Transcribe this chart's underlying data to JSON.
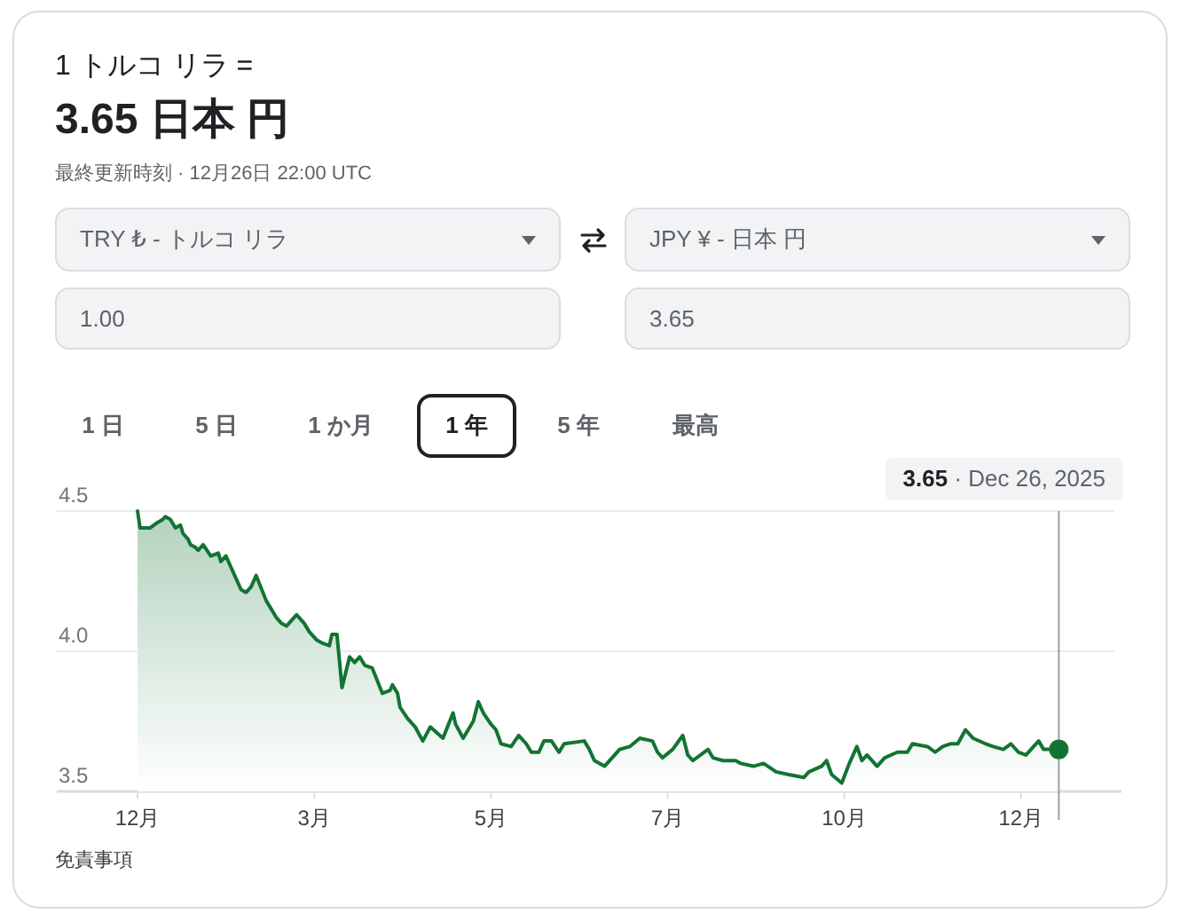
{
  "chart_data": {
    "type": "area",
    "title": "1 トルコ リラ =",
    "subtitle": "3.65 日本 円",
    "annotations": [
      "最終更新時刻 · 12月26日 22:00 UTC",
      "TRY ₺ - トルコ リラ",
      "JPY ¥ - 日本 円",
      "1.00",
      "3.65",
      "1 日",
      "5 日",
      "1 か月",
      "1 年",
      "5 年",
      "最高",
      "**3.65** · Dec 26, 2025",
      "免責事項"
    ],
    "x": [
      "2024-12-26",
      "2024-12-27",
      "2024-12-29",
      "2024-12-31",
      "2025-01-03",
      "2025-01-05",
      "2025-01-06",
      "2025-01-08",
      "2025-01-10",
      "2025-01-12",
      "2025-01-13",
      "2025-01-15",
      "2025-01-16",
      "2025-01-18",
      "2025-01-19",
      "2025-01-21",
      "2025-01-24",
      "2025-01-27",
      "2025-01-28",
      "2025-01-30",
      "2025-02-01",
      "2025-02-03",
      "2025-02-05",
      "2025-02-07",
      "2025-02-09",
      "2025-02-11",
      "2025-02-15",
      "2025-02-19",
      "2025-02-21",
      "2025-02-23",
      "2025-02-27",
      "2025-03-02",
      "2025-03-04",
      "2025-03-07",
      "2025-03-09",
      "2025-03-12",
      "2025-03-13",
      "2025-03-15",
      "2025-03-17",
      "2025-03-20",
      "2025-03-22",
      "2025-03-24",
      "2025-03-26",
      "2025-03-29",
      "2025-04-02",
      "2025-04-05",
      "2025-04-06",
      "2025-04-08",
      "2025-04-09",
      "2025-04-12",
      "2025-04-15",
      "2025-04-18",
      "2025-04-21",
      "2025-04-26",
      "2025-04-30",
      "2025-05-01",
      "2025-05-04",
      "2025-05-08",
      "2025-05-10",
      "2025-05-12",
      "2025-05-15",
      "2025-05-17",
      "2025-05-19",
      "2025-05-23",
      "2025-05-26",
      "2025-05-29",
      "2025-05-31",
      "2025-06-03",
      "2025-06-05",
      "2025-06-08",
      "2025-06-11",
      "2025-06-13",
      "2025-06-21",
      "2025-06-23",
      "2025-06-25",
      "2025-06-29",
      "2025-07-02",
      "2025-07-05",
      "2025-07-09",
      "2025-07-13",
      "2025-07-18",
      "2025-07-20",
      "2025-07-22",
      "2025-07-26",
      "2025-07-30",
      "2025-08-01",
      "2025-08-03",
      "2025-08-09",
      "2025-08-11",
      "2025-08-15",
      "2025-08-20",
      "2025-08-22",
      "2025-08-27",
      "2025-08-31",
      "2025-09-05",
      "2025-09-10",
      "2025-09-16",
      "2025-09-18",
      "2025-09-23",
      "2025-09-25",
      "2025-09-27",
      "2025-10-01",
      "2025-10-04",
      "2025-10-07",
      "2025-10-09",
      "2025-10-11",
      "2025-10-15",
      "2025-10-18",
      "2025-10-23",
      "2025-10-27",
      "2025-10-29",
      "2025-11-04",
      "2025-11-07",
      "2025-11-10",
      "2025-11-13",
      "2025-11-16",
      "2025-11-19",
      "2025-11-22",
      "2025-11-27",
      "2025-11-30",
      "2025-12-04",
      "2025-12-07",
      "2025-12-10",
      "2025-12-13",
      "2025-12-18",
      "2025-12-20",
      "2025-12-24",
      "2025-12-26"
    ],
    "series": [
      {
        "color": "#137333",
        "values": [
          4.5,
          4.44,
          4.44,
          4.44,
          4.46,
          4.47,
          4.48,
          4.47,
          4.44,
          4.45,
          4.42,
          4.4,
          4.38,
          4.37,
          4.36,
          4.38,
          4.34,
          4.35,
          4.32,
          4.34,
          4.3,
          4.26,
          4.22,
          4.21,
          4.23,
          4.27,
          4.18,
          4.12,
          4.1,
          4.09,
          4.13,
          4.1,
          4.07,
          4.04,
          4.03,
          4.02,
          4.06,
          4.06,
          3.87,
          3.98,
          3.96,
          3.98,
          3.95,
          3.94,
          3.85,
          3.86,
          3.88,
          3.85,
          3.8,
          3.76,
          3.73,
          3.68,
          3.73,
          3.69,
          3.78,
          3.74,
          3.69,
          3.75,
          3.82,
          3.78,
          3.74,
          3.72,
          3.67,
          3.66,
          3.7,
          3.67,
          3.64,
          3.64,
          3.68,
          3.68,
          3.64,
          3.67,
          3.68,
          3.65,
          3.61,
          3.59,
          3.62,
          3.65,
          3.66,
          3.69,
          3.68,
          3.64,
          3.62,
          3.65,
          3.7,
          3.63,
          3.61,
          3.65,
          3.62,
          3.61,
          3.61,
          3.6,
          3.59,
          3.6,
          3.57,
          3.56,
          3.55,
          3.57,
          3.59,
          3.61,
          3.56,
          3.53,
          3.6,
          3.66,
          3.61,
          3.63,
          3.59,
          3.62,
          3.64,
          3.64,
          3.67,
          3.66,
          3.64,
          3.66,
          3.67,
          3.67,
          3.72,
          3.69,
          3.67,
          3.66,
          3.65,
          3.67,
          3.64,
          3.63,
          3.68,
          3.65,
          3.65,
          3.65
        ]
      },
      {
        "type": "scatter",
        "x": [
          "2025-12-26"
        ],
        "values": [
          3.65
        ],
        "color": "#137333",
        "marker": "circle"
      }
    ],
    "xlim": [
      "2024-11-24",
      "2026-01-17"
    ],
    "ylim": [
      3.5,
      4.5
    ],
    "xticks": [
      {
        "value": "2024-12-26",
        "label": "12月"
      },
      {
        "value": "2025-03-06",
        "label": "3月"
      },
      {
        "value": "2025-05-15",
        "label": "5月"
      },
      {
        "value": "2025-07-24",
        "label": "7月"
      },
      {
        "value": "2025-10-02",
        "label": "10月"
      },
      {
        "value": "2025-12-11",
        "label": "12月"
      }
    ],
    "yticks": [
      3.5,
      {
        "value": 4,
        "label": "4.0"
      },
      4.5
    ],
    "grid": "y",
    "ref_lines": [
      {
        "axis": "x",
        "value": "2025-12-26",
        "color": "#9aa0a6"
      }
    ]
  }
}
